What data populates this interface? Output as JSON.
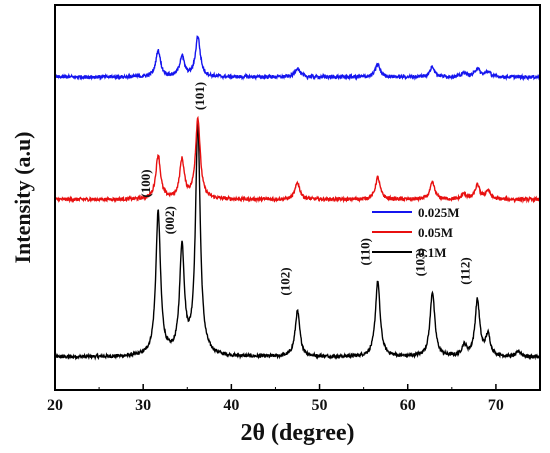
{
  "chart_data": {
    "type": "line",
    "title": "",
    "xlabel": "2θ (degree)",
    "ylabel": "Intensity (a.u)",
    "xlim": [
      20,
      75
    ],
    "xticks": [
      "20",
      "30",
      "40",
      "50",
      "60",
      "70"
    ],
    "yticks_visible": false,
    "grid": false,
    "legend_position": "center-right",
    "peaks": [
      {
        "x": 31.7,
        "label": "(100)"
      },
      {
        "x": 34.4,
        "label": "(002)"
      },
      {
        "x": 36.2,
        "label": "(101)"
      },
      {
        "x": 47.5,
        "label": "(102)"
      },
      {
        "x": 56.6,
        "label": "(110)"
      },
      {
        "x": 62.8,
        "label": "(103)"
      },
      {
        "x": 67.9,
        "label": "(112)"
      }
    ],
    "series": [
      {
        "name": "0.025M",
        "color": "#1515ee",
        "offset": 0.8,
        "peaks": [
          {
            "x": 31.7,
            "h": 0.075
          },
          {
            "x": 34.4,
            "h": 0.058
          },
          {
            "x": 36.2,
            "h": 0.115
          },
          {
            "x": 47.5,
            "h": 0.026
          },
          {
            "x": 56.6,
            "h": 0.036
          },
          {
            "x": 62.8,
            "h": 0.03
          },
          {
            "x": 66.4,
            "h": 0.012
          },
          {
            "x": 67.9,
            "h": 0.025
          },
          {
            "x": 69.1,
            "h": 0.015
          }
        ]
      },
      {
        "name": "0.05M",
        "color": "#e81010",
        "offset": 0.45,
        "peaks": [
          {
            "x": 31.7,
            "h": 0.125
          },
          {
            "x": 34.4,
            "h": 0.11
          },
          {
            "x": 36.2,
            "h": 0.23
          },
          {
            "x": 47.5,
            "h": 0.048
          },
          {
            "x": 56.6,
            "h": 0.063
          },
          {
            "x": 62.8,
            "h": 0.048
          },
          {
            "x": 66.4,
            "h": 0.015
          },
          {
            "x": 67.9,
            "h": 0.04
          },
          {
            "x": 69.1,
            "h": 0.025
          }
        ]
      },
      {
        "name": "0.1M",
        "color": "#000000",
        "offset": 0.0,
        "peaks": [
          {
            "x": 31.7,
            "h": 0.41
          },
          {
            "x": 34.4,
            "h": 0.305
          },
          {
            "x": 36.2,
            "h": 0.66
          },
          {
            "x": 47.5,
            "h": 0.13
          },
          {
            "x": 56.6,
            "h": 0.215
          },
          {
            "x": 62.8,
            "h": 0.185
          },
          {
            "x": 66.4,
            "h": 0.03
          },
          {
            "x": 67.9,
            "h": 0.16
          },
          {
            "x": 69.1,
            "h": 0.06
          },
          {
            "x": 72.6,
            "h": 0.015
          }
        ]
      }
    ]
  }
}
